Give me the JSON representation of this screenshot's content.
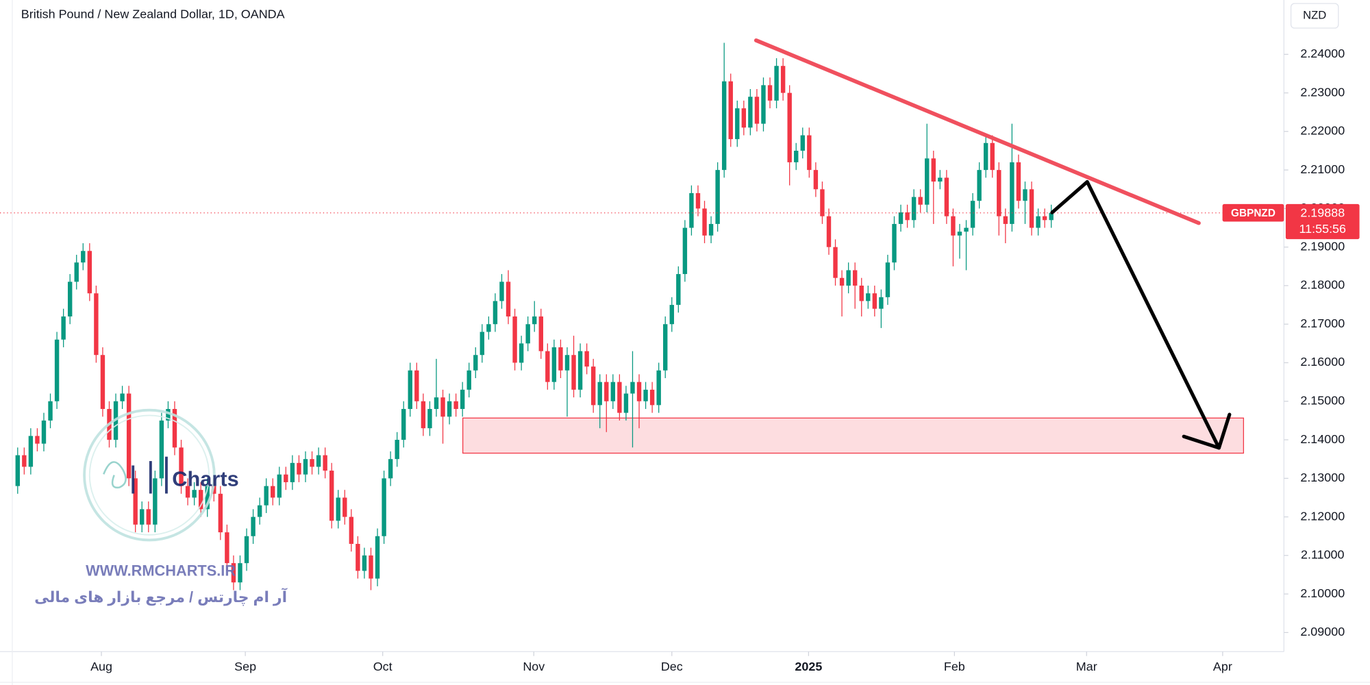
{
  "chart_data": {
    "type": "candlestick",
    "title": "British Pound / New Zealand Dollar, 1D, OANDA",
    "currency": "NZD",
    "symbol": "GBPNZD",
    "countdown": "11:55:56",
    "up_color": "#089981",
    "down_color": "#f23645",
    "grid": false,
    "xlim": [
      -2.7,
      193.3
    ],
    "xticks": [
      {
        "value": 12.8,
        "label": "Aug"
      },
      {
        "value": 34.8,
        "label": "Sep"
      },
      {
        "value": 55.8,
        "label": "Oct"
      },
      {
        "value": 78.9,
        "label": "Nov"
      },
      {
        "value": 100,
        "label": "Dec"
      },
      {
        "value": 120.9,
        "label": "2025"
      },
      {
        "value": 143.2,
        "label": "Feb"
      },
      {
        "value": 163.4,
        "label": "Mar"
      },
      {
        "value": 184.2,
        "label": "Apr"
      }
    ],
    "ylim": [
      2.0855,
      2.2541
    ],
    "yticks": [
      {
        "value": 2.09,
        "label": "2.09000"
      },
      {
        "value": 2.1,
        "label": "2.10000"
      },
      {
        "value": 2.11,
        "label": "2.11000"
      },
      {
        "value": 2.12,
        "label": "2.12000"
      },
      {
        "value": 2.13,
        "label": "2.13000"
      },
      {
        "value": 2.14,
        "label": "2.14000"
      },
      {
        "value": 2.15,
        "label": "2.15000"
      },
      {
        "value": 2.16,
        "label": "2.16000"
      },
      {
        "value": 2.17,
        "label": "2.17000"
      },
      {
        "value": 2.18,
        "label": "2.18000"
      },
      {
        "value": 2.19,
        "label": "2.19000"
      },
      {
        "value": 2.2,
        "label": "2.20000"
      },
      {
        "value": 2.21,
        "label": "2.21000"
      },
      {
        "value": 2.22,
        "label": "2.22000"
      },
      {
        "value": 2.23,
        "label": "2.23000"
      },
      {
        "value": 2.24,
        "label": "2.24000"
      }
    ],
    "ohlc": [
      [
        2.128,
        2.138,
        2.126,
        2.136
      ],
      [
        2.136,
        2.138,
        2.131,
        2.133
      ],
      [
        2.133,
        2.143,
        2.131,
        2.141
      ],
      [
        2.141,
        2.143,
        2.137,
        2.139
      ],
      [
        2.139,
        2.147,
        2.137,
        2.145
      ],
      [
        2.145,
        2.152,
        2.143,
        2.15
      ],
      [
        2.15,
        2.168,
        2.148,
        2.166
      ],
      [
        2.166,
        2.174,
        2.164,
        2.172
      ],
      [
        2.172,
        2.183,
        2.17,
        2.181
      ],
      [
        2.181,
        2.188,
        2.179,
        2.186
      ],
      [
        2.186,
        2.191,
        2.184,
        2.189
      ],
      [
        2.189,
        2.191,
        2.176,
        2.178
      ],
      [
        2.178,
        2.18,
        2.16,
        2.162
      ],
      [
        2.162,
        2.164,
        2.146,
        2.148
      ],
      [
        2.148,
        2.15,
        2.138,
        2.14
      ],
      [
        2.14,
        2.152,
        2.138,
        2.15
      ],
      [
        2.15,
        2.154,
        2.148,
        2.152
      ],
      [
        2.152,
        2.154,
        2.128,
        2.13
      ],
      [
        2.13,
        2.132,
        2.116,
        2.118
      ],
      [
        2.118,
        2.124,
        2.116,
        2.122
      ],
      [
        2.122,
        2.124,
        2.116,
        2.118
      ],
      [
        2.118,
        2.132,
        2.116,
        2.13
      ],
      [
        2.13,
        2.147,
        2.128,
        2.145
      ],
      [
        2.145,
        2.15,
        2.143,
        2.148
      ],
      [
        2.148,
        2.15,
        2.136,
        2.138
      ],
      [
        2.138,
        2.14,
        2.126,
        2.128
      ],
      [
        2.128,
        2.13,
        2.123,
        2.125
      ],
      [
        2.125,
        2.129,
        2.123,
        2.127
      ],
      [
        2.127,
        2.129,
        2.12,
        2.122
      ],
      [
        2.122,
        2.13,
        2.12,
        2.128
      ],
      [
        2.128,
        2.13,
        2.124,
        2.126
      ],
      [
        2.126,
        2.128,
        2.114,
        2.116
      ],
      [
        2.116,
        2.118,
        2.106,
        2.108
      ],
      [
        2.108,
        2.11,
        2.101,
        2.103
      ],
      [
        2.103,
        2.11,
        2.101,
        2.108
      ],
      [
        2.108,
        2.117,
        2.106,
        2.115
      ],
      [
        2.115,
        2.122,
        2.113,
        2.12
      ],
      [
        2.12,
        2.125,
        2.118,
        2.123
      ],
      [
        2.123,
        2.13,
        2.121,
        2.128
      ],
      [
        2.128,
        2.13,
        2.123,
        2.125
      ],
      [
        2.125,
        2.133,
        2.123,
        2.131
      ],
      [
        2.131,
        2.133,
        2.127,
        2.129
      ],
      [
        2.129,
        2.136,
        2.127,
        2.134
      ],
      [
        2.134,
        2.136,
        2.129,
        2.131
      ],
      [
        2.131,
        2.137,
        2.129,
        2.135
      ],
      [
        2.135,
        2.137,
        2.131,
        2.133
      ],
      [
        2.133,
        2.138,
        2.131,
        2.136
      ],
      [
        2.136,
        2.138,
        2.13,
        2.132
      ],
      [
        2.132,
        2.134,
        2.117,
        2.119
      ],
      [
        2.119,
        2.127,
        2.117,
        2.125
      ],
      [
        2.125,
        2.127,
        2.118,
        2.12
      ],
      [
        2.12,
        2.122,
        2.111,
        2.113
      ],
      [
        2.113,
        2.115,
        2.104,
        2.106
      ],
      [
        2.106,
        2.112,
        2.104,
        2.11
      ],
      [
        2.11,
        2.112,
        2.101,
        2.104
      ],
      [
        2.104,
        2.117,
        2.102,
        2.115
      ],
      [
        2.115,
        2.132,
        2.113,
        2.13
      ],
      [
        2.13,
        2.137,
        2.128,
        2.135
      ],
      [
        2.135,
        2.142,
        2.133,
        2.14
      ],
      [
        2.14,
        2.15,
        2.138,
        2.148
      ],
      [
        2.148,
        2.16,
        2.146,
        2.158
      ],
      [
        2.158,
        2.16,
        2.148,
        2.15
      ],
      [
        2.15,
        2.152,
        2.141,
        2.143
      ],
      [
        2.143,
        2.15,
        2.141,
        2.148
      ],
      [
        2.148,
        2.161,
        2.146,
        2.151
      ],
      [
        2.151,
        2.153,
        2.139,
        2.146
      ],
      [
        2.146,
        2.152,
        2.144,
        2.15
      ],
      [
        2.15,
        2.152,
        2.146,
        2.148
      ],
      [
        2.148,
        2.155,
        2.146,
        2.153
      ],
      [
        2.153,
        2.16,
        2.151,
        2.158
      ],
      [
        2.158,
        2.164,
        2.156,
        2.162
      ],
      [
        2.162,
        2.17,
        2.16,
        2.168
      ],
      [
        2.168,
        2.172,
        2.166,
        2.17
      ],
      [
        2.17,
        2.178,
        2.168,
        2.176
      ],
      [
        2.176,
        2.183,
        2.174,
        2.181
      ],
      [
        2.181,
        2.184,
        2.17,
        2.172
      ],
      [
        2.172,
        2.174,
        2.158,
        2.16
      ],
      [
        2.16,
        2.167,
        2.158,
        2.165
      ],
      [
        2.165,
        2.172,
        2.163,
        2.17
      ],
      [
        2.17,
        2.176,
        2.168,
        2.172
      ],
      [
        2.172,
        2.174,
        2.161,
        2.163
      ],
      [
        2.163,
        2.165,
        2.153,
        2.155
      ],
      [
        2.155,
        2.166,
        2.153,
        2.164
      ],
      [
        2.164,
        2.166,
        2.156,
        2.158
      ],
      [
        2.158,
        2.164,
        2.146,
        2.162
      ],
      [
        2.162,
        2.167,
        2.151,
        2.153
      ],
      [
        2.153,
        2.165,
        2.151,
        2.163
      ],
      [
        2.163,
        2.165,
        2.157,
        2.159
      ],
      [
        2.159,
        2.161,
        2.147,
        2.149
      ],
      [
        2.149,
        2.157,
        2.143,
        2.155
      ],
      [
        2.155,
        2.157,
        2.142,
        2.15
      ],
      [
        2.15,
        2.157,
        2.148,
        2.155
      ],
      [
        2.155,
        2.157,
        2.145,
        2.147
      ],
      [
        2.147,
        2.154,
        2.145,
        2.152
      ],
      [
        2.152,
        2.163,
        2.138,
        2.155
      ],
      [
        2.155,
        2.157,
        2.143,
        2.15
      ],
      [
        2.15,
        2.155,
        2.148,
        2.153
      ],
      [
        2.153,
        2.155,
        2.147,
        2.149
      ],
      [
        2.149,
        2.16,
        2.147,
        2.158
      ],
      [
        2.158,
        2.172,
        2.156,
        2.17
      ],
      [
        2.17,
        2.177,
        2.168,
        2.175
      ],
      [
        2.175,
        2.185,
        2.173,
        2.183
      ],
      [
        2.183,
        2.197,
        2.181,
        2.195
      ],
      [
        2.195,
        2.206,
        2.193,
        2.204
      ],
      [
        2.204,
        2.206,
        2.198,
        2.2
      ],
      [
        2.2,
        2.202,
        2.191,
        2.193
      ],
      [
        2.193,
        2.198,
        2.191,
        2.196
      ],
      [
        2.196,
        2.212,
        2.194,
        2.21
      ],
      [
        2.21,
        2.243,
        2.208,
        2.233
      ],
      [
        2.233,
        2.235,
        2.216,
        2.218
      ],
      [
        2.218,
        2.228,
        2.216,
        2.226
      ],
      [
        2.226,
        2.228,
        2.219,
        2.221
      ],
      [
        2.221,
        2.231,
        2.219,
        2.229
      ],
      [
        2.229,
        2.231,
        2.22,
        2.222
      ],
      [
        2.222,
        2.234,
        2.22,
        2.232
      ],
      [
        2.232,
        2.234,
        2.226,
        2.228
      ],
      [
        2.228,
        2.239,
        2.226,
        2.237
      ],
      [
        2.237,
        2.239,
        2.228,
        2.23
      ],
      [
        2.23,
        2.232,
        2.206,
        2.212
      ],
      [
        2.212,
        2.217,
        2.21,
        2.215
      ],
      [
        2.215,
        2.221,
        2.213,
        2.219
      ],
      [
        2.219,
        2.221,
        2.208,
        2.21
      ],
      [
        2.21,
        2.212,
        2.203,
        2.205
      ],
      [
        2.205,
        2.207,
        2.196,
        2.198
      ],
      [
        2.198,
        2.2,
        2.188,
        2.19
      ],
      [
        2.19,
        2.192,
        2.18,
        2.182
      ],
      [
        2.182,
        2.184,
        2.172,
        2.18
      ],
      [
        2.18,
        2.186,
        2.178,
        2.184
      ],
      [
        2.184,
        2.186,
        2.174,
        2.18
      ],
      [
        2.18,
        2.182,
        2.172,
        2.176
      ],
      [
        2.176,
        2.18,
        2.174,
        2.178
      ],
      [
        2.178,
        2.18,
        2.172,
        2.174
      ],
      [
        2.174,
        2.179,
        2.169,
        2.177
      ],
      [
        2.177,
        2.188,
        2.175,
        2.186
      ],
      [
        2.186,
        2.198,
        2.184,
        2.196
      ],
      [
        2.196,
        2.201,
        2.194,
        2.199
      ],
      [
        2.199,
        2.201,
        2.195,
        2.197
      ],
      [
        2.197,
        2.205,
        2.195,
        2.203
      ],
      [
        2.203,
        2.205,
        2.199,
        2.201
      ],
      [
        2.201,
        2.222,
        2.199,
        2.213
      ],
      [
        2.213,
        2.215,
        2.196,
        2.207
      ],
      [
        2.207,
        2.21,
        2.205,
        2.208
      ],
      [
        2.208,
        2.21,
        2.196,
        2.198
      ],
      [
        2.198,
        2.2,
        2.185,
        2.193
      ],
      [
        2.193,
        2.196,
        2.187,
        2.194
      ],
      [
        2.194,
        2.197,
        2.184,
        2.195
      ],
      [
        2.195,
        2.204,
        2.193,
        2.202
      ],
      [
        2.202,
        2.212,
        2.2,
        2.21
      ],
      [
        2.21,
        2.219,
        2.208,
        2.217
      ],
      [
        2.217,
        2.219,
        2.208,
        2.21
      ],
      [
        2.21,
        2.212,
        2.193,
        2.198
      ],
      [
        2.198,
        2.2,
        2.191,
        2.196
      ],
      [
        2.196,
        2.222,
        2.194,
        2.212
      ],
      [
        2.212,
        2.214,
        2.2,
        2.202
      ],
      [
        2.202,
        2.207,
        2.196,
        2.205
      ],
      [
        2.205,
        2.207,
        2.193,
        2.195
      ],
      [
        2.195,
        2.2,
        2.193,
        2.198
      ],
      [
        2.198,
        2.2,
        2.195,
        2.197
      ],
      [
        2.197,
        2.201,
        2.195,
        2.19888
      ]
    ]
  },
  "watermark": {
    "logo": "Charts",
    "url": "WWW.RMCHARTS.IR",
    "tagline": "آر ام چارتس / مرجع بازار های مالی"
  }
}
